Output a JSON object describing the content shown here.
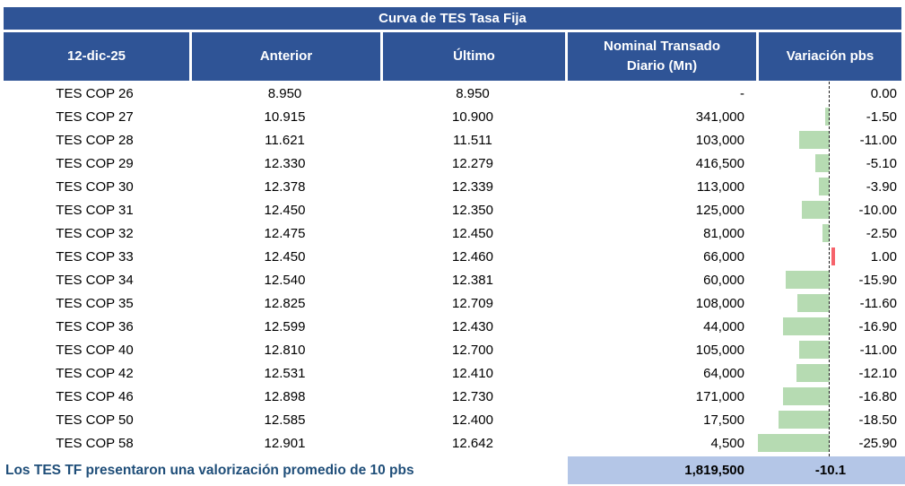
{
  "title": "Curva de TES Tasa Fija",
  "chart_data": {
    "type": "table",
    "title": "Curva de TES Tasa Fija",
    "columns": [
      "12-dic-25",
      "Anterior",
      "Último",
      "Nominal Transado Diario (Mn)",
      "Variación pbs"
    ],
    "rows": [
      {
        "bond": "TES COP 26",
        "anterior": "8.950",
        "ultimo": "8.950",
        "nominal": "-",
        "variacion": 0.0
      },
      {
        "bond": "TES COP 27",
        "anterior": "10.915",
        "ultimo": "10.900",
        "nominal": "341,000",
        "variacion": -1.5
      },
      {
        "bond": "TES COP 28",
        "anterior": "11.621",
        "ultimo": "11.511",
        "nominal": "103,000",
        "variacion": -11.0
      },
      {
        "bond": "TES COP 29",
        "anterior": "12.330",
        "ultimo": "12.279",
        "nominal": "416,500",
        "variacion": -5.1
      },
      {
        "bond": "TES COP 30",
        "anterior": "12.378",
        "ultimo": "12.339",
        "nominal": "113,000",
        "variacion": -3.9
      },
      {
        "bond": "TES COP 31",
        "anterior": "12.450",
        "ultimo": "12.350",
        "nominal": "125,000",
        "variacion": -10.0
      },
      {
        "bond": "TES COP 32",
        "anterior": "12.475",
        "ultimo": "12.450",
        "nominal": "81,000",
        "variacion": -2.5
      },
      {
        "bond": "TES COP 33",
        "anterior": "12.450",
        "ultimo": "12.460",
        "nominal": "66,000",
        "variacion": 1.0
      },
      {
        "bond": "TES COP 34",
        "anterior": "12.540",
        "ultimo": "12.381",
        "nominal": "60,000",
        "variacion": -15.9
      },
      {
        "bond": "TES COP 35",
        "anterior": "12.825",
        "ultimo": "12.709",
        "nominal": "108,000",
        "variacion": -11.6
      },
      {
        "bond": "TES COP 36",
        "anterior": "12.599",
        "ultimo": "12.430",
        "nominal": "44,000",
        "variacion": -16.9
      },
      {
        "bond": "TES COP 40",
        "anterior": "12.810",
        "ultimo": "12.700",
        "nominal": "105,000",
        "variacion": -11.0
      },
      {
        "bond": "TES COP 42",
        "anterior": "12.531",
        "ultimo": "12.410",
        "nominal": "64,000",
        "variacion": -12.1
      },
      {
        "bond": "TES COP 46",
        "anterior": "12.898",
        "ultimo": "12.730",
        "nominal": "171,000",
        "variacion": -16.8
      },
      {
        "bond": "TES COP 50",
        "anterior": "12.585",
        "ultimo": "12.400",
        "nominal": "17,500",
        "variacion": -18.5
      },
      {
        "bond": "TES COP 58",
        "anterior": "12.901",
        "ultimo": "12.642",
        "nominal": "4,500",
        "variacion": -25.9
      }
    ],
    "footer": {
      "note": "Los TES TF presentaron una valorización promedio de 10 pbs",
      "total_nominal": "1,819,500",
      "avg_variacion": "-10.1"
    },
    "layout_hints": {
      "databar_axis": "dashed vertical zero line, negative bars extend left",
      "legend_position": "none",
      "grid": "off"
    },
    "colors": {
      "header_bg": "#2F5496",
      "header_text": "#FFFFFF",
      "footer_band_bg": "#B4C6E7",
      "footer_note_text": "#1F4E79",
      "bar_negative": "#B6DBB2",
      "bar_positive": "#F6636B",
      "axis_line": "#1A1A1A"
    }
  }
}
